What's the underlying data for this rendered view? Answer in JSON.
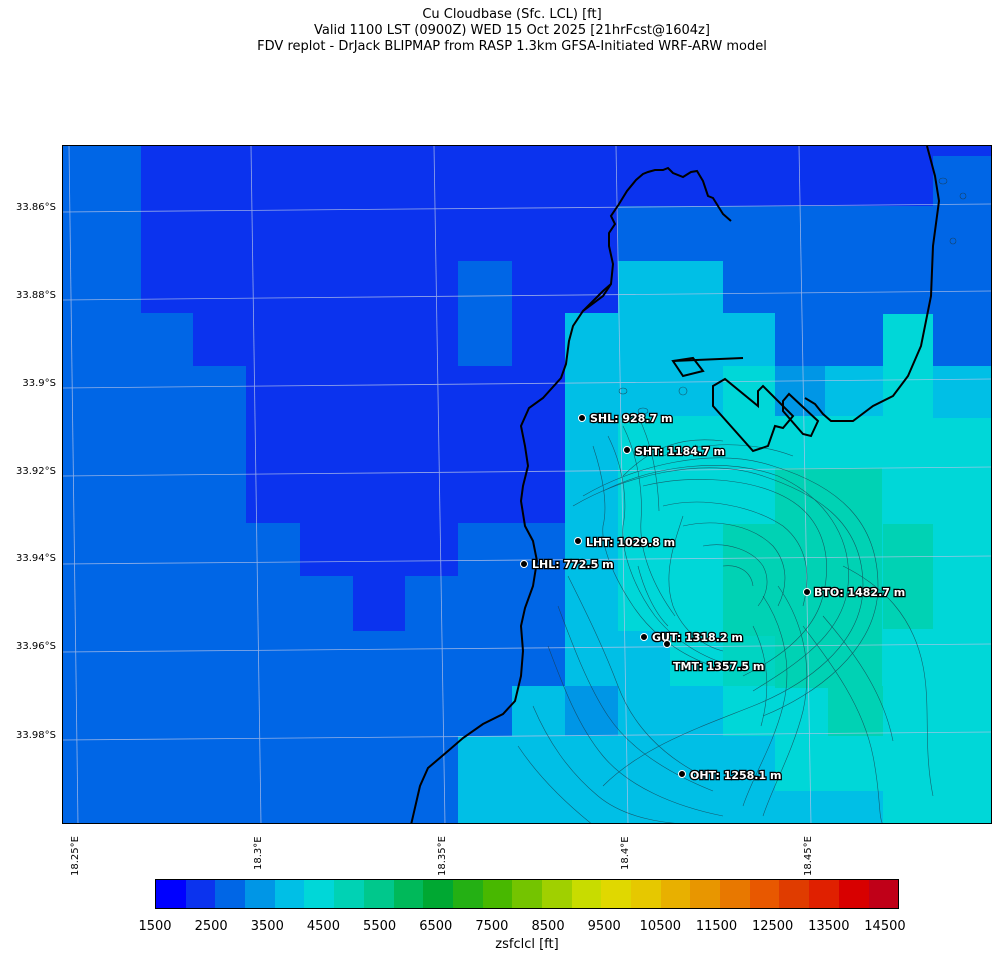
{
  "title": {
    "line1": "Cu Cloudbase (Sfc. LCL) [ft]",
    "line2": "Valid 1100 LST (0900Z) WED 15 Oct 2025 [21hrFcst@1604z]",
    "line3": "FDV replot - DrJack BLIPMAP from RASP 1.3km GFSA-Initiated WRF-ARW model"
  },
  "axes": {
    "lat_labels": [
      "33.86°S",
      "33.88°S",
      "33.9°S",
      "33.92°S",
      "33.94°S",
      "33.96°S",
      "33.98°S"
    ],
    "lon_labels": [
      "18.25°E",
      "18.3°E",
      "18.35°E",
      "18.4°E",
      "18.45°E"
    ]
  },
  "stations": [
    {
      "code": "SHL",
      "label": "SHL: 928.7 m"
    },
    {
      "code": "SHT",
      "label": "SHT: 1184.7 m"
    },
    {
      "code": "LHT",
      "label": "LHT: 1029.8 m"
    },
    {
      "code": "LHL",
      "label": "LHL: 772.5 m"
    },
    {
      "code": "BTO",
      "label": "BTO: 1482.7 m"
    },
    {
      "code": "GUT",
      "label": "GUT: 1318.2 m"
    },
    {
      "code": "TMT",
      "label": "TMT: 1357.5 m"
    },
    {
      "code": "OHT",
      "label": "OHT: 1258.1 m"
    }
  ],
  "colorbar": {
    "title": "zsfclcl [ft]",
    "tick_labels": [
      "1500",
      "2500",
      "3500",
      "4500",
      "5500",
      "6500",
      "7500",
      "8500",
      "9500",
      "10500",
      "11500",
      "12500",
      "13500",
      "14500"
    ],
    "colors": [
      "#0000ff",
      "#0b33ee",
      "#0066e6",
      "#0096e6",
      "#00bfe6",
      "#00d7d8",
      "#00d2b4",
      "#00c88c",
      "#00b95a",
      "#00a832",
      "#24b014",
      "#48b800",
      "#74c400",
      "#a0d000",
      "#c8dc00",
      "#e0d800",
      "#e6c800",
      "#e8b000",
      "#e89600",
      "#e87800",
      "#e85800",
      "#e03c00",
      "#e02000",
      "#d80000",
      "#c00018"
    ]
  },
  "legend_hidden": {
    "grid": "on",
    "basemap": "coastline and terrain contours"
  }
}
